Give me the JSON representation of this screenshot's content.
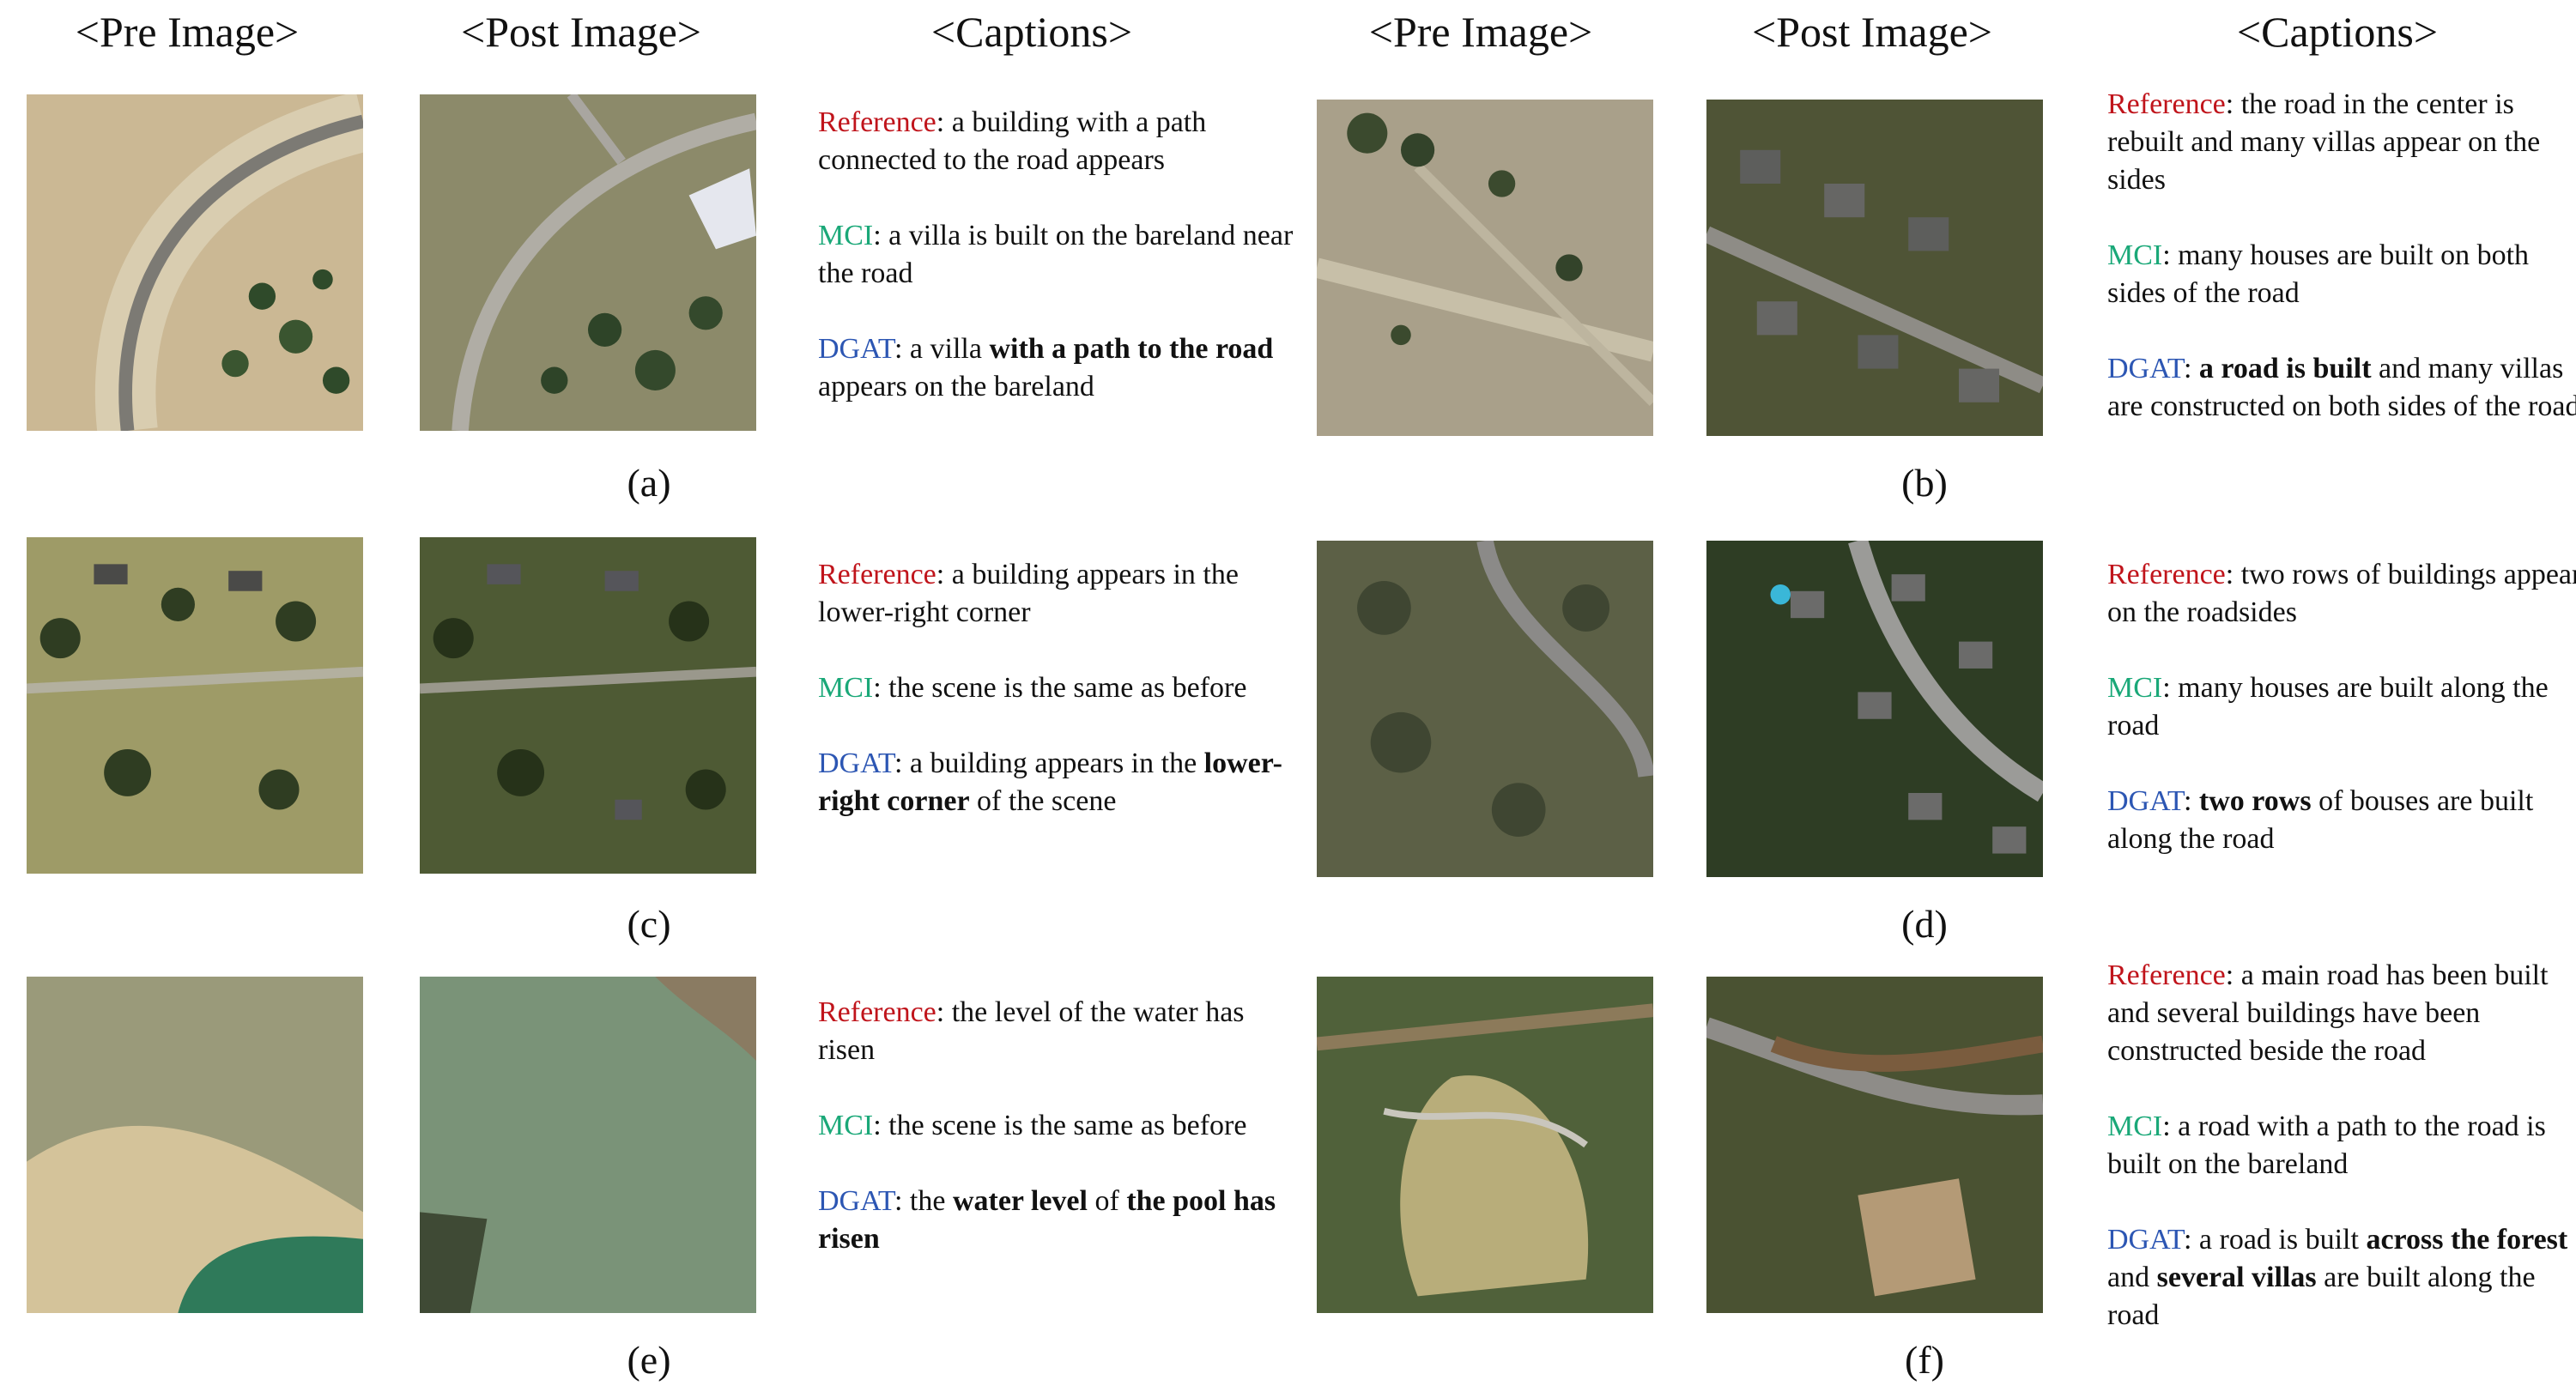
{
  "headers": {
    "pre": "<Pre Image>",
    "post": "<Post Image>",
    "captions": "<Captions>"
  },
  "terms": {
    "reference": "Reference",
    "mci": "MCI",
    "dgat": "DGAT"
  },
  "panels": [
    {
      "label": "(a)",
      "reference": ": a building with a path connected to the road appears",
      "mci": ": a villa is built on the bareland near the road",
      "dgat": [
        {
          "t": ": a villa ",
          "b": false
        },
        {
          "t": "with a path to the road",
          "b": true
        },
        {
          "t": " appears on the bareland",
          "b": false
        }
      ]
    },
    {
      "label": "(b)",
      "reference": ": the road in the center is rebuilt and many villas appear on the sides",
      "mci": ": many houses are built on both sides of the road",
      "dgat": [
        {
          "t": ": ",
          "b": false
        },
        {
          "t": "a road is built",
          "b": true
        },
        {
          "t": " and many villas are constructed on both sides of the road",
          "b": false
        }
      ]
    },
    {
      "label": "(c)",
      "reference": ": a building appears in the lower-right corner",
      "mci": ": the scene is the same as before",
      "dgat": [
        {
          "t": ": a building appears in the ",
          "b": false
        },
        {
          "t": "lower-right corner",
          "b": true
        },
        {
          "t": " of the scene",
          "b": false
        }
      ]
    },
    {
      "label": "(d)",
      "reference": ": two rows of buildings appear on the roadsides",
      "mci": ": many houses are built along the road",
      "dgat": [
        {
          "t": ": ",
          "b": false
        },
        {
          "t": "two rows",
          "b": true
        },
        {
          "t": " of bouses are built along the road",
          "b": false
        }
      ]
    },
    {
      "label": "(e)",
      "reference": ": the level of the water has risen",
      "mci": ": the scene is the same as before",
      "dgat": [
        {
          "t": ": the ",
          "b": false
        },
        {
          "t": "water level",
          "b": true
        },
        {
          "t": " of ",
          "b": false
        },
        {
          "t": "the pool has risen",
          "b": true
        }
      ]
    },
    {
      "label": "(f)",
      "reference": ": a main road has been built and several buildings have been constructed beside the road",
      "mci": ": a road with a path to the road is built on the bareland",
      "dgat": [
        {
          "t": ": a road is built ",
          "b": false
        },
        {
          "t": "across the forest",
          "b": true
        },
        {
          "t": " and ",
          "b": false
        },
        {
          "t": "several villas",
          "b": true
        },
        {
          "t": " are built along the road",
          "b": false
        }
      ]
    }
  ]
}
